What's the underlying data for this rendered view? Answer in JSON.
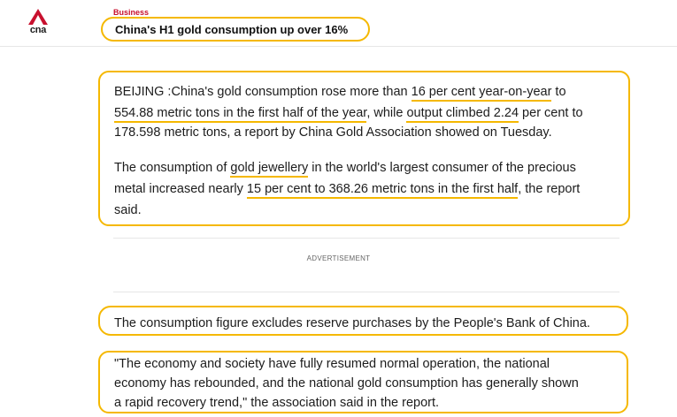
{
  "header": {
    "logo_text": "cna",
    "section": "Business",
    "headline": "China's H1 gold consumption up over 16%"
  },
  "article": {
    "para1": {
      "line1_a": "BEIJING :China's gold consumption rose more than ",
      "line1_b": "16 per cent year-on-year",
      "line1_c": " to",
      "line2_a": "554.88 metric tons in the first half of the year",
      "line2_b": ", while ",
      "line2_c": "output climbed 2.24",
      "line2_d": " per cent to",
      "line3": "178.598 metric tons, a report by China Gold Association showed on Tuesday."
    },
    "para2": {
      "line1_a": "The consumption of ",
      "line1_b": "gold jewellery",
      "line1_c": " in the world's largest consumer of the precious",
      "line2_a": "metal increased nearly ",
      "line2_b": "15 per cent to 368.26 metric tons in the first half",
      "line2_c": ", the report",
      "line3": "said."
    },
    "advertisement_label": "ADVERTISEMENT",
    "para3": "The consumption figure excludes reserve purchases by the People's Bank of China.",
    "para4": {
      "line1": "\"The economy and society have fully resumed normal operation, the national",
      "line2": "economy has rebounded, and the national gold consumption has generally shown",
      "line3": "a rapid recovery trend,\" the association said in the report."
    }
  },
  "colors": {
    "highlight": "#f5b800",
    "brand_red": "#c8102e"
  }
}
